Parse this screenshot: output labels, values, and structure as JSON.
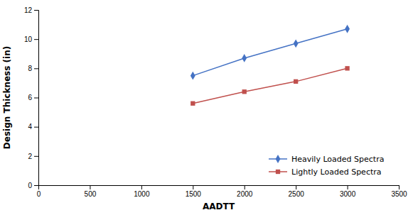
{
  "chart_data": {
    "type": "line",
    "xlabel": "AADTT",
    "ylabel": "Design Thickness (in)",
    "x": [
      1500,
      2000,
      2500,
      3000
    ],
    "series": [
      {
        "name": "Heavily Loaded Spectra",
        "color": "#4472C4",
        "marker": "diamond",
        "values": [
          7.5,
          8.7,
          9.7,
          10.7
        ]
      },
      {
        "name": "Lightly Loaded Spectra",
        "color": "#C0504D",
        "marker": "square",
        "values": [
          5.6,
          6.4,
          7.1,
          8.0
        ]
      }
    ],
    "xlim": [
      0,
      3500
    ],
    "ylim": [
      0,
      12
    ],
    "xticks": [
      0,
      500,
      1000,
      1500,
      2000,
      2500,
      3000,
      3500
    ],
    "yticks": [
      0,
      2,
      4,
      6,
      8,
      10,
      12
    ],
    "grid": false,
    "legend": "lower right"
  }
}
